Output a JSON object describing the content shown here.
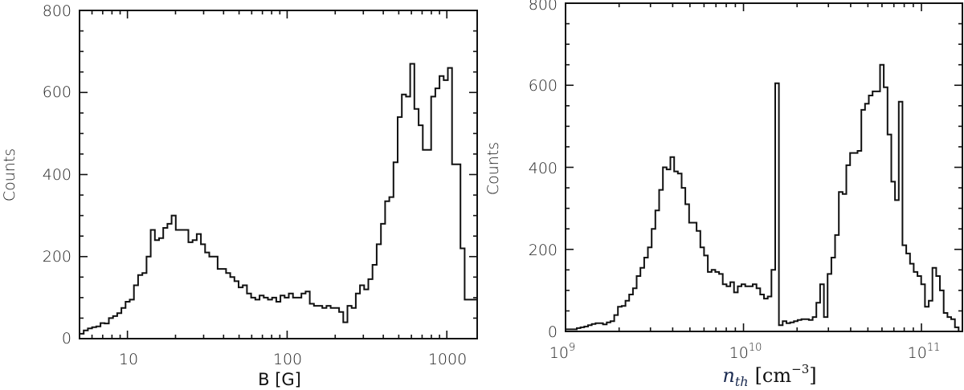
{
  "chart_data": [
    {
      "type": "bar",
      "subtype": "histogram-step",
      "title": "",
      "xlabel": "B [G]",
      "ylabel": "Counts",
      "xscale": "log",
      "xlim_log10": [
        0.7,
        3.19
      ],
      "ylim": [
        0,
        800
      ],
      "yticks": [
        0,
        200,
        400,
        600,
        800
      ],
      "xticks": [
        {
          "value": 10,
          "label": "10"
        },
        {
          "value": 100,
          "label": "100"
        },
        {
          "value": 1000,
          "label": "1000"
        }
      ],
      "counts": [
        12,
        20,
        25,
        28,
        30,
        38,
        37,
        50,
        55,
        62,
        75,
        90,
        95,
        130,
        155,
        160,
        200,
        265,
        240,
        245,
        270,
        280,
        300,
        265,
        265,
        265,
        235,
        240,
        255,
        230,
        210,
        200,
        200,
        170,
        170,
        160,
        150,
        140,
        125,
        130,
        110,
        100,
        95,
        105,
        100,
        95,
        100,
        90,
        105,
        100,
        110,
        100,
        100,
        110,
        115,
        85,
        80,
        80,
        75,
        80,
        75,
        75,
        65,
        40,
        80,
        75,
        110,
        130,
        120,
        145,
        180,
        230,
        280,
        335,
        345,
        430,
        540,
        595,
        590,
        670,
        560,
        520,
        460,
        460,
        590,
        610,
        640,
        630,
        660,
        425,
        425,
        220,
        95,
        95,
        95
      ],
      "grid": false,
      "legend": null
    },
    {
      "type": "bar",
      "subtype": "histogram-step",
      "title": "",
      "xlabel": "n_th [cm^-3]",
      "ylabel": "Counts",
      "xscale": "log",
      "xlim_log10": [
        9.0,
        11.23
      ],
      "ylim": [
        0,
        800
      ],
      "yticks": [
        0,
        200,
        400,
        600,
        800
      ],
      "xticks": [
        {
          "value": 9,
          "label": "10",
          "sup": "9"
        },
        {
          "value": 10,
          "label": "10",
          "sup": "10"
        },
        {
          "value": 11,
          "label": "10",
          "sup": "11"
        }
      ],
      "counts": [
        5,
        5,
        5,
        8,
        10,
        12,
        15,
        18,
        20,
        20,
        17,
        22,
        25,
        40,
        60,
        62,
        75,
        90,
        105,
        135,
        155,
        180,
        205,
        250,
        295,
        345,
        400,
        395,
        425,
        390,
        385,
        350,
        310,
        265,
        265,
        245,
        205,
        185,
        145,
        150,
        145,
        140,
        115,
        110,
        120,
        95,
        110,
        115,
        110,
        110,
        115,
        105,
        90,
        80,
        85,
        150,
        605,
        15,
        25,
        20,
        22,
        25,
        28,
        30,
        30,
        28,
        35,
        70,
        115,
        35,
        140,
        180,
        235,
        340,
        335,
        405,
        435,
        435,
        440,
        540,
        555,
        575,
        585,
        585,
        650,
        595,
        480,
        365,
        320,
        560,
        210,
        190,
        165,
        145,
        135,
        115,
        60,
        75,
        155,
        135,
        100,
        45,
        35,
        30,
        10,
        0
      ],
      "grid": false,
      "legend": null
    }
  ],
  "left_panel": {
    "ylabel": "Counts",
    "xlabel": "B [G]",
    "yticks": [
      "0",
      "200",
      "400",
      "600",
      "800"
    ],
    "xticks": [
      "10",
      "100",
      "1000"
    ]
  },
  "right_panel": {
    "ylabel": "Counts",
    "xlabel_main": "n",
    "xlabel_sub": "th",
    "xlabel_unit_open": "[cm",
    "xlabel_unit_sup": "−3",
    "xlabel_unit_close": "]",
    "yticks": [
      "0",
      "200",
      "400",
      "600",
      "800"
    ],
    "xtick_base": "10",
    "xtick_exps": [
      "9",
      "10",
      "11"
    ]
  }
}
